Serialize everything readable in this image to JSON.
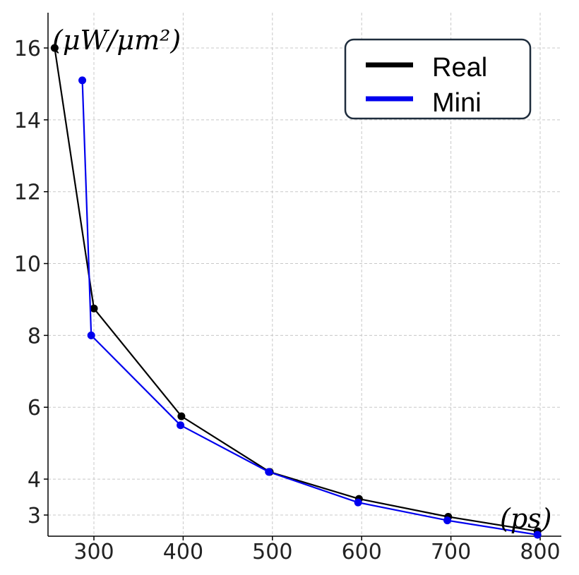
{
  "chart_data": {
    "type": "line",
    "title": "",
    "xlabel": "(ps)",
    "ylabel": "(μW/μm²)",
    "xlim": [
      250,
      805
    ],
    "ylim": [
      2.4,
      17.0
    ],
    "xticks": [
      300,
      400,
      500,
      600,
      700,
      800
    ],
    "yticks": [
      3,
      4,
      6,
      8,
      10,
      12,
      14,
      16
    ],
    "grid": true,
    "legend_position": "top-right",
    "series": [
      {
        "name": "Real",
        "color": "#000000",
        "x": [
          256,
          300,
          398,
          497,
          597,
          697,
          797
        ],
        "y": [
          16.0,
          8.75,
          5.75,
          4.2,
          3.45,
          2.95,
          2.55
        ]
      },
      {
        "name": "Mini",
        "color": "#0000ee",
        "x": [
          287,
          297,
          397,
          496,
          596,
          696,
          797
        ],
        "y": [
          15.1,
          8.0,
          5.5,
          4.2,
          3.35,
          2.85,
          2.45
        ]
      }
    ]
  }
}
